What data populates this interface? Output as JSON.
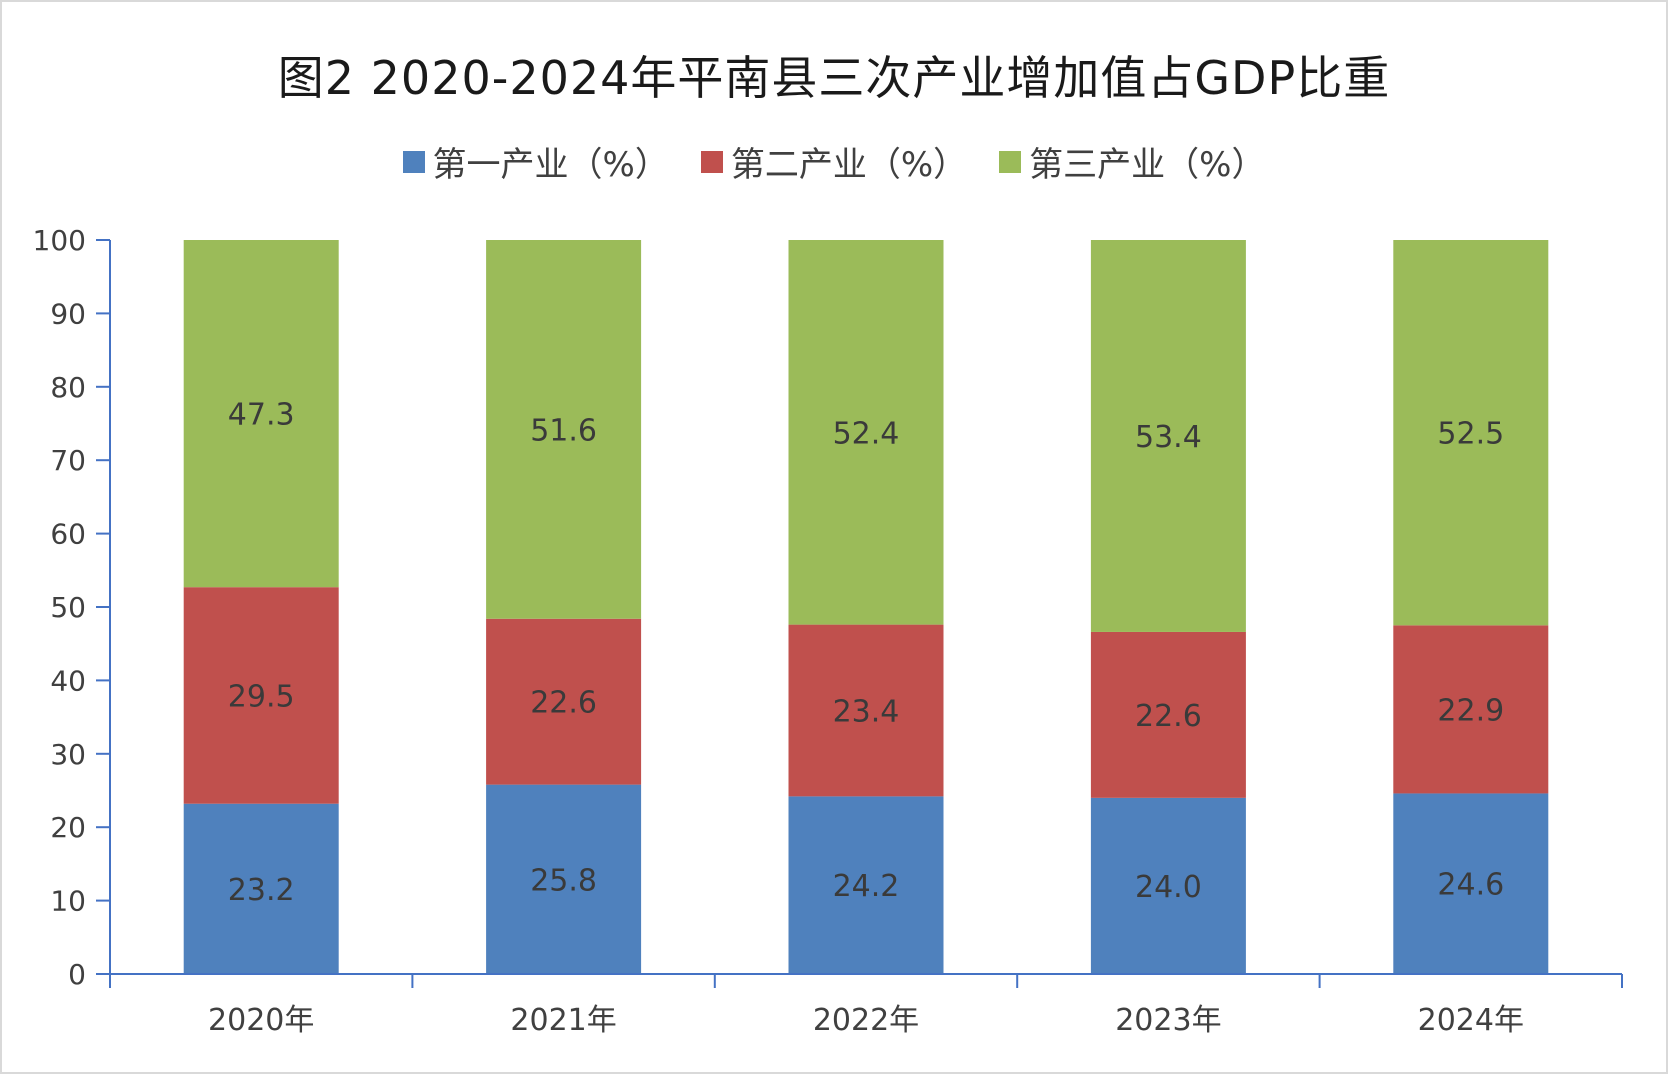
{
  "chart_data": {
    "type": "bar",
    "stacked": true,
    "title": "图2  2020-2024年平南县三次产业增加值占GDP比重",
    "categories": [
      "2020年",
      "2021年",
      "2022年",
      "2023年",
      "2024年"
    ],
    "series": [
      {
        "name": "第一产业（%）",
        "color": "#4f81bd",
        "values": [
          23.2,
          25.8,
          24.2,
          24.0,
          24.6
        ]
      },
      {
        "name": "第二产业（%）",
        "color": "#c0504d",
        "values": [
          29.5,
          22.6,
          23.4,
          22.6,
          22.9
        ]
      },
      {
        "name": "第三产业（%）",
        "color": "#9bbb59",
        "values": [
          47.3,
          51.6,
          52.4,
          53.4,
          52.5
        ]
      }
    ],
    "y_ticks": [
      "0",
      "10",
      "20",
      "30",
      "40",
      "50",
      "60",
      "70",
      "80",
      "90",
      "100"
    ],
    "ylim": [
      0,
      100
    ],
    "axis_color": "#4472c4",
    "grid": false,
    "legend_position": "top"
  }
}
